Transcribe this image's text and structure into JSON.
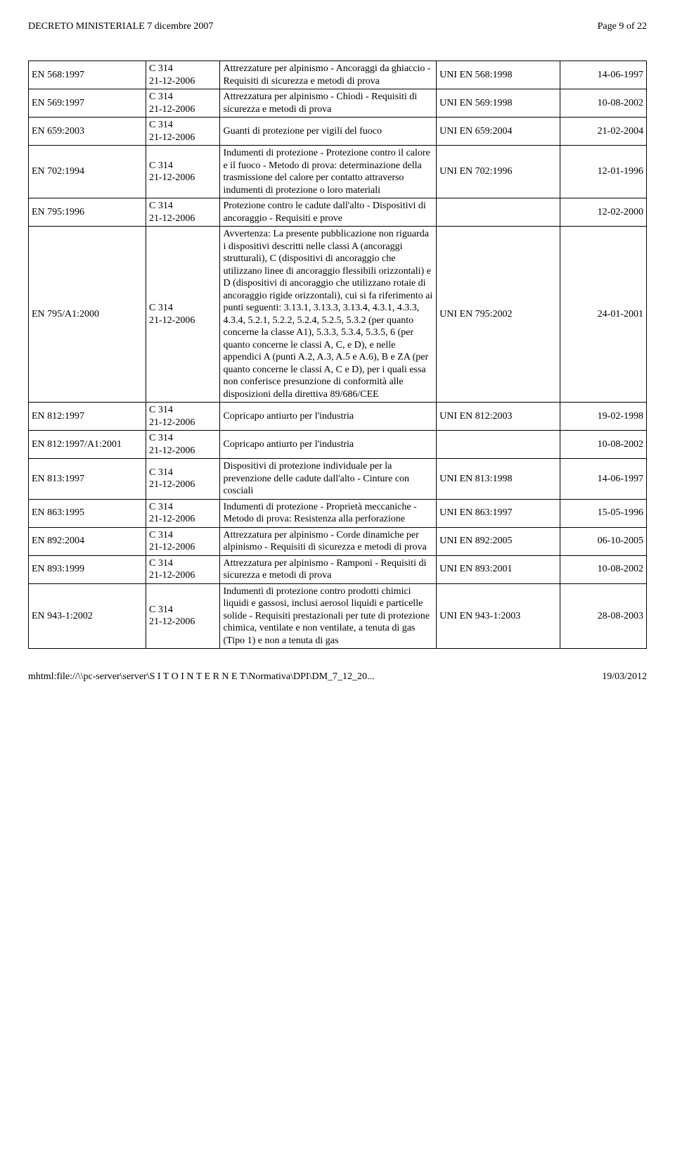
{
  "header": {
    "title": "DECRETO MINISTERIALE 7 dicembre 2007",
    "page": "Page 9 of 22"
  },
  "footer": {
    "path": "mhtml:file://\\\\pc-server\\server\\S I T O  I N T E R N E T\\Normativa\\DPI\\DM_7_12_20...",
    "date": "19/03/2012"
  },
  "table": {
    "column_widths_pct": [
      19,
      12,
      35,
      20,
      14
    ],
    "col2_default": "C 314\n21-12-2006",
    "rows": [
      {
        "c1": "EN 568:1997",
        "c3": "Attrezzature per alpinismo - Ancoraggi da ghiaccio - Requisiti di sicurezza e metodi di prova",
        "c4": "UNI EN 568:1998",
        "c5": "14-06-1997"
      },
      {
        "c1": "EN 569:1997",
        "c3": "Attrezzatura per alpinismo - Chiodi - Requisiti di sicurezza e metodi di prova",
        "c4": "UNI EN 569:1998",
        "c5": "10-08-2002"
      },
      {
        "c1": "EN 659:2003",
        "c3": "Guanti di protezione per vigili del fuoco",
        "c4": "UNI EN 659:2004",
        "c5": "21-02-2004"
      },
      {
        "c1": "EN 702:1994",
        "c3": "Indumenti di protezione - Protezione contro il calore e il fuoco - Metodo di prova: determinazione della trasmissione del calore per contatto attraverso indumenti di protezione o loro materiali",
        "c4": "UNI EN 702:1996",
        "c5": "12-01-1996"
      },
      {
        "c1": "EN 795:1996",
        "c3": "Protezione contro le cadute dall'alto - Dispositivi di ancoraggio - Requisiti e prove",
        "c4": "",
        "c5": "12-02-2000"
      },
      {
        "c1": "EN 795/A1:2000",
        "c3": "Avvertenza: La presente pubblicazione non riguarda i dispositivi descritti nelle classi A (ancoraggi strutturali), C (dispositivi di ancoraggio che utilizzano linee di ancoraggio flessibili orizzontali) e D (dispositivi di ancoraggio che utilizzano rotaie di ancoraggio rigide orizzontali), cui si fa riferimento ai punti seguenti: 3.13.1, 3.13.3, 3.13.4, 4.3.1, 4.3.3, 4.3.4, 5.2.1, 5.2.2, 5.2.4, 5.2.5, 5.3.2 (per quanto concerne la classe A1), 5.3.3, 5.3.4, 5.3.5, 6 (per quanto concerne le classi A, C, e D), e nelle appendici A (punti A.2, A.3, A.5 e A.6), B e ZA (per quanto concerne le classi A, C e D), per i quali essa non conferisce presunzione di conformità alle disposizioni della direttiva 89/686/CEE",
        "c4": "UNI EN 795:2002",
        "c5": "24-01-2001"
      },
      {
        "c1": "EN 812:1997",
        "c3": "Copricapo antiurto per l'industria",
        "c4": "UNI EN 812:2003",
        "c5": "19-02-1998"
      },
      {
        "c1": "EN 812:1997/A1:2001",
        "c3": "Copricapo antiurto per l'industria",
        "c4": "",
        "c5": "10-08-2002"
      },
      {
        "c1": "EN 813:1997",
        "c3": "Dispositivi di protezione individuale per la prevenzione delle cadute dall'alto - Cinture con cosciali",
        "c4": "UNI EN 813:1998",
        "c5": "14-06-1997"
      },
      {
        "c1": "EN 863:1995",
        "c3": "Indumenti di protezione - Proprietà meccaniche - Metodo di prova: Resistenza alla perforazione",
        "c4": "UNI EN 863:1997",
        "c5": "15-05-1996"
      },
      {
        "c1": "EN 892:2004",
        "c3": "Attrezzatura per alpinismo - Corde dinamiche per alpinismo - Requisiti di sicurezza e metodi di prova",
        "c4": "UNI EN 892:2005",
        "c5": "06-10-2005"
      },
      {
        "c1": "EN 893:1999",
        "c3": "Attrezzatura per alpinismo - Ramponi - Requisiti di sicurezza e metodi di prova",
        "c4": "UNI EN 893:2001",
        "c5": "10-08-2002"
      },
      {
        "c1": "EN 943-1:2002",
        "c3": "Indumenti di protezione contro prodotti chimici liquidi e gassosi, inclusi aerosol liquidi e particelle solide - Requisiti prestazionali per tute di protezione chimica, ventilate e non ventilate, a tenuta di gas (Tipo 1) e non a tenuta di gas",
        "c4": "UNI EN 943-1:2003",
        "c5": "28-08-2003"
      }
    ]
  }
}
